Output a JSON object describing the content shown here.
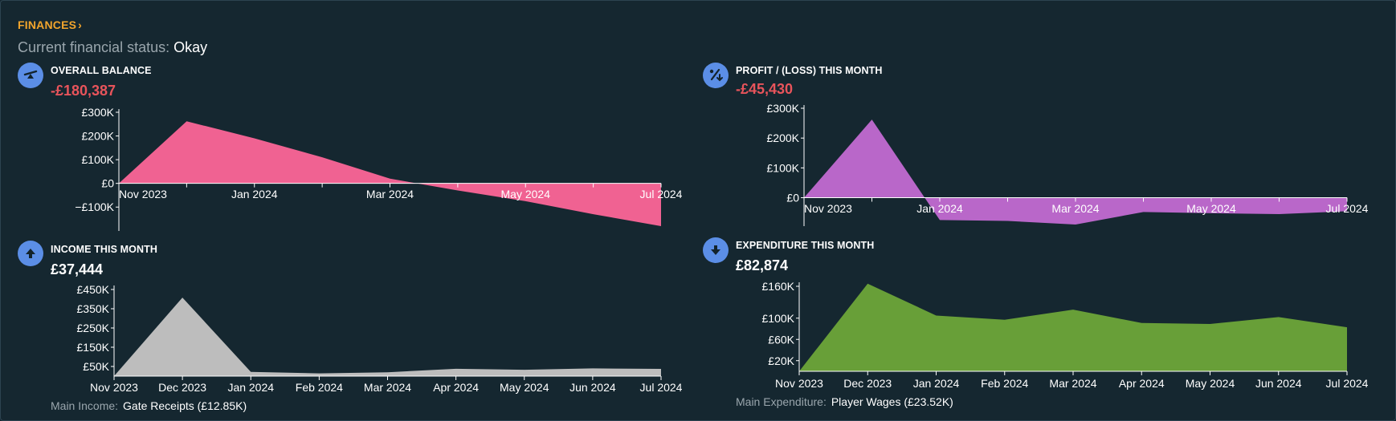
{
  "section_link": "FINANCES",
  "status": {
    "label": "Current financial status:",
    "value": "Okay"
  },
  "panels": {
    "balance": {
      "title": "OVERALL BALANCE",
      "value": "-£180,387",
      "icon": "scales-icon",
      "color": "#f06292"
    },
    "profit": {
      "title": "PROFIT / (LOSS) THIS MONTH",
      "value": "-£45,430",
      "icon": "percent-icon",
      "color": "#b967c9"
    },
    "income": {
      "title": "INCOME THIS MONTH",
      "value": "£37,444",
      "icon": "arrow-up-icon",
      "color": "#bdbdbd",
      "main_label": "Main Income:",
      "main_value": "Gate Receipts (£12.85K)"
    },
    "expenditure": {
      "title": "EXPENDITURE THIS MONTH",
      "value": "£82,874",
      "icon": "arrow-down-icon",
      "color": "#689f38",
      "main_label": "Main Expenditure:",
      "main_value": "Player Wages (£23.52K)"
    }
  },
  "chart_data": [
    {
      "id": "balance",
      "type": "area",
      "x": [
        "Nov 2023",
        "Dec 2023",
        "Jan 2024",
        "Feb 2024",
        "Mar 2024",
        "Apr 2024",
        "May 2024",
        "Jun 2024",
        "Jul 2024"
      ],
      "xticks": [
        "Nov 2023",
        "Jan 2024",
        "Mar 2024",
        "May 2024",
        "Jul 2024"
      ],
      "values": [
        0,
        262000,
        190000,
        110000,
        20000,
        -30000,
        -75000,
        -130000,
        -180387
      ],
      "yticks": [
        300000,
        200000,
        100000,
        0,
        -100000
      ],
      "ytick_labels": [
        "£300K",
        "£200K",
        "£100K",
        "£0",
        "−£100K"
      ],
      "ylim": [
        -180387,
        300000
      ]
    },
    {
      "id": "profit",
      "type": "area",
      "x": [
        "Nov 2023",
        "Dec 2023",
        "Jan 2024",
        "Feb 2024",
        "Mar 2024",
        "Apr 2024",
        "May 2024",
        "Jun 2024",
        "Jul 2024"
      ],
      "xticks": [
        "Nov 2023",
        "Jan 2024",
        "Mar 2024",
        "May 2024",
        "Jul 2024"
      ],
      "values": [
        0,
        262000,
        -75000,
        -78000,
        -90000,
        -48000,
        -52000,
        -55000,
        -45430
      ],
      "yticks": [
        300000,
        200000,
        100000,
        0
      ],
      "ytick_labels": [
        "£300K",
        "£200K",
        "£100K",
        "£0"
      ],
      "ylim": [
        -90000,
        300000
      ]
    },
    {
      "id": "income",
      "type": "area",
      "x": [
        "Nov 2023",
        "Dec 2023",
        "Jan 2024",
        "Feb 2024",
        "Mar 2024",
        "Apr 2024",
        "May 2024",
        "Jun 2024",
        "Jul 2024"
      ],
      "xticks": [
        "Nov 2023",
        "Dec 2023",
        "Jan 2024",
        "Feb 2024",
        "Mar 2024",
        "Apr 2024",
        "May 2024",
        "Jun 2024",
        "Jul 2024"
      ],
      "values": [
        0,
        408000,
        22000,
        14000,
        20000,
        38000,
        33000,
        40000,
        37444
      ],
      "yticks": [
        450000,
        350000,
        250000,
        150000,
        50000
      ],
      "ytick_labels": [
        "£450K",
        "£350K",
        "£250K",
        "£150K",
        "£50K"
      ],
      "ylim": [
        0,
        450000
      ]
    },
    {
      "id": "expenditure",
      "type": "area",
      "x": [
        "Nov 2023",
        "Dec 2023",
        "Jan 2024",
        "Feb 2024",
        "Mar 2024",
        "Apr 2024",
        "May 2024",
        "Jun 2024",
        "Jul 2024"
      ],
      "xticks": [
        "Nov 2023",
        "Dec 2023",
        "Jan 2024",
        "Feb 2024",
        "Mar 2024",
        "Apr 2024",
        "May 2024",
        "Jun 2024",
        "Jul 2024"
      ],
      "values": [
        0,
        165000,
        105000,
        97000,
        116000,
        91000,
        89000,
        102000,
        82874
      ],
      "yticks": [
        160000,
        100000,
        60000,
        20000
      ],
      "ytick_labels": [
        "£160K",
        "£100K",
        "£60K",
        "£20K"
      ],
      "ylim": [
        0,
        160000
      ]
    }
  ]
}
